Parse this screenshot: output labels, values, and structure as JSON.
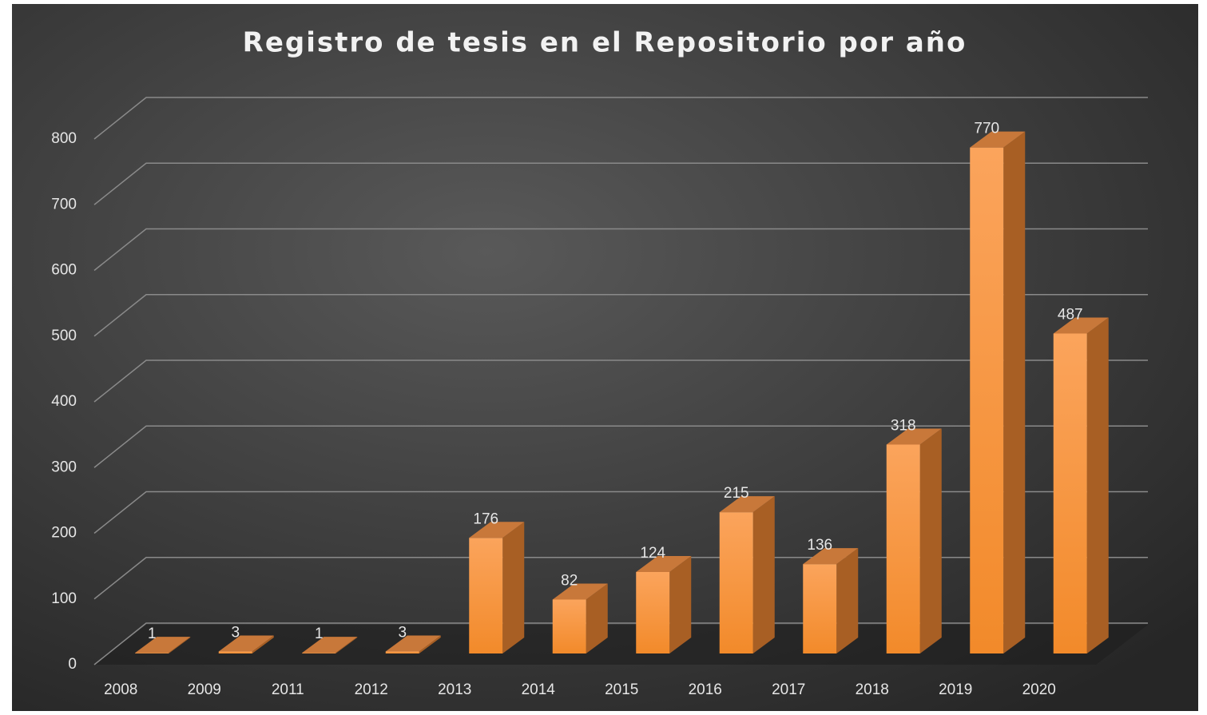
{
  "chart_data": {
    "type": "bar",
    "title": "Registro de tesis en el Repositorio por año",
    "categories": [
      "2008",
      "2009",
      "2011",
      "2012",
      "2013",
      "2014",
      "2015",
      "2016",
      "2017",
      "2018",
      "2019",
      "2020"
    ],
    "values": [
      1,
      3,
      1,
      3,
      176,
      82,
      124,
      215,
      136,
      318,
      770,
      487
    ],
    "color": "#f7963c",
    "ylim": [
      0,
      800
    ],
    "yticks": [
      0,
      100,
      200,
      300,
      400,
      500,
      600,
      700,
      800
    ],
    "grid": true
  }
}
